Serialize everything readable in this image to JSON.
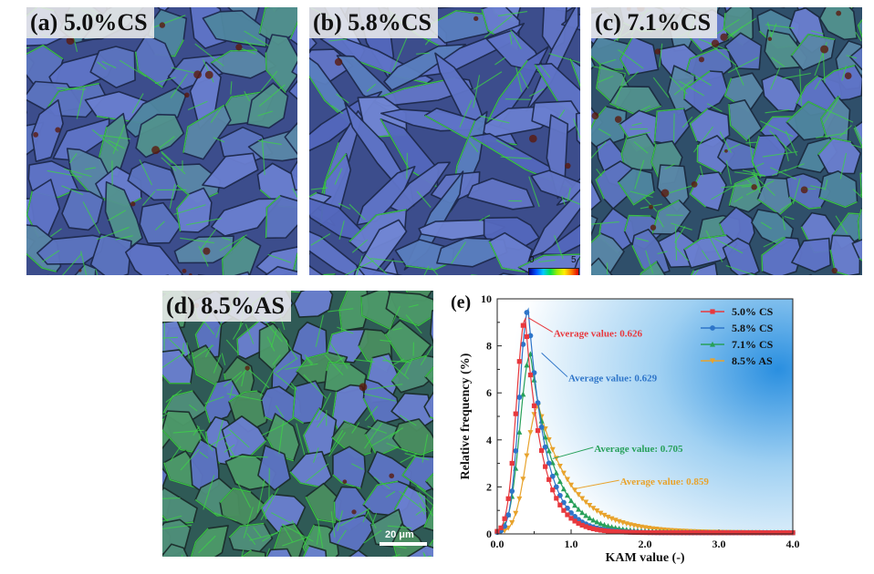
{
  "panels": {
    "a": {
      "label": "(a) 5.0%CS"
    },
    "b": {
      "label": "(b) 5.8%CS",
      "colorbar": {
        "min": "0",
        "max": "5"
      }
    },
    "c": {
      "label": "(c) 7.1%CS"
    },
    "d": {
      "label": "(d) 8.5%AS",
      "scale_bar": "20 μm"
    }
  },
  "chart_data": {
    "type": "line",
    "panel_label": "(e)",
    "xlabel": "KAM value (-)",
    "ylabel": "Relative frequency (%)",
    "xlim": [
      0,
      4
    ],
    "ylim": [
      0,
      10
    ],
    "xticks": [
      "0.0",
      "1.0",
      "2.0",
      "3.0",
      "4.0"
    ],
    "yticks": [
      "0",
      "2",
      "4",
      "6",
      "8",
      "10"
    ],
    "legend_position": "top-right",
    "series": [
      {
        "name": "5.0% CS",
        "color": "#e8383d",
        "marker": "square",
        "peak_x": 0.38,
        "peak_y": 9.1,
        "sigma_left": 0.12,
        "tau": 0.23,
        "annotation": "Average value: 0.626"
      },
      {
        "name": "5.8% CS",
        "color": "#2e75c9",
        "marker": "circle",
        "peak_x": 0.42,
        "peak_y": 9.5,
        "sigma_left": 0.12,
        "tau": 0.24,
        "annotation": "Average value: 0.629"
      },
      {
        "name": "7.1% CS",
        "color": "#27a05a",
        "marker": "triangle-up",
        "peak_x": 0.45,
        "peak_y": 7.6,
        "sigma_left": 0.14,
        "tau": 0.32,
        "annotation": "Average value: 0.705"
      },
      {
        "name": "8.5% AS",
        "color": "#e8a32c",
        "marker": "triangle-down",
        "peak_x": 0.56,
        "peak_y": 5.4,
        "sigma_left": 0.16,
        "tau": 0.45,
        "annotation": "Average value: 0.859"
      }
    ]
  }
}
